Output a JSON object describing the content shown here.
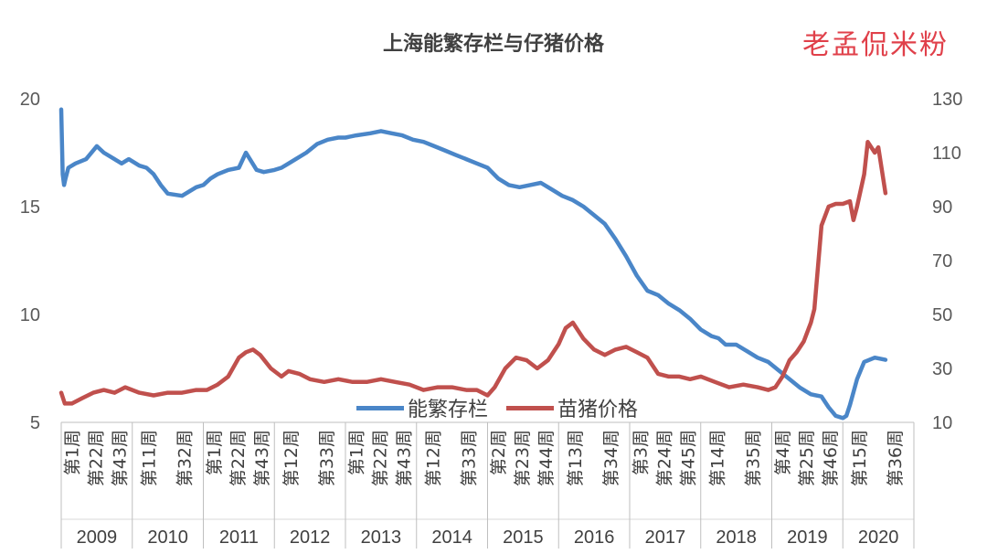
{
  "chart_data": {
    "type": "line",
    "title": "上海能繁存栏与仔猪价格",
    "watermark": "老孟侃米粉",
    "left_axis": {
      "ylim": [
        5,
        20
      ],
      "ticks": [
        "5",
        "10",
        "15",
        "20"
      ]
    },
    "right_axis": {
      "ylim": [
        10,
        130
      ],
      "ticks": [
        "10",
        "30",
        "50",
        "70",
        "90",
        "110",
        "130"
      ]
    },
    "years": [
      "2009",
      "2010",
      "2011",
      "2012",
      "2013",
      "2014",
      "2015",
      "2016",
      "2017",
      "2018",
      "2019",
      "2020"
    ],
    "week_labels": [
      [
        "第1周",
        "第22周",
        "第43周"
      ],
      [
        "第11周",
        "第32周"
      ],
      [
        "第1周",
        "第22周",
        "第43周"
      ],
      [
        "第12周",
        "第33周"
      ],
      [
        "第1周",
        "第22周",
        "第43周"
      ],
      [
        "第12周",
        "第33周"
      ],
      [
        "第2周",
        "第23周",
        "第44周"
      ],
      [
        "第13周",
        "第34周"
      ],
      [
        "第3周",
        "第24周",
        "第45周"
      ],
      [
        "第14周",
        "第35周"
      ],
      [
        "第4周",
        "第25周",
        "第46周"
      ],
      [
        "第15周",
        "第36周"
      ]
    ],
    "grid": false,
    "legend_position": "bottom-center",
    "series": [
      {
        "name": "能繁存栏",
        "axis": "left",
        "color": "#4a86c8",
        "x": [
          2009.0,
          2009.02,
          2009.04,
          2009.06,
          2009.1,
          2009.2,
          2009.35,
          2009.5,
          2009.6,
          2009.75,
          2009.85,
          2009.95,
          2010.1,
          2010.2,
          2010.3,
          2010.4,
          2010.5,
          2010.7,
          2010.9,
          2011.0,
          2011.1,
          2011.2,
          2011.35,
          2011.5,
          2011.6,
          2011.75,
          2011.85,
          2012.0,
          2012.1,
          2012.2,
          2012.3,
          2012.45,
          2012.6,
          2012.75,
          2012.9,
          2013.0,
          2013.15,
          2013.35,
          2013.5,
          2013.65,
          2013.8,
          2013.95,
          2014.1,
          2014.25,
          2014.4,
          2014.55,
          2014.7,
          2014.85,
          2015.0,
          2015.15,
          2015.3,
          2015.45,
          2015.6,
          2015.75,
          2015.9,
          2016.05,
          2016.2,
          2016.35,
          2016.5,
          2016.65,
          2016.8,
          2016.95,
          2017.1,
          2017.25,
          2017.4,
          2017.55,
          2017.7,
          2017.85,
          2018.0,
          2018.15,
          2018.25,
          2018.35,
          2018.5,
          2018.65,
          2018.8,
          2018.95,
          2019.1,
          2019.25,
          2019.4,
          2019.55,
          2019.7,
          2019.8,
          2019.9,
          2020.0,
          2020.05,
          2020.1,
          2020.2,
          2020.3,
          2020.45,
          2020.6
        ],
        "values": [
          19.5,
          16.5,
          16.0,
          16.3,
          16.8,
          17.0,
          17.2,
          17.8,
          17.5,
          17.2,
          17.0,
          17.2,
          16.9,
          16.8,
          16.5,
          16.0,
          15.6,
          15.5,
          15.9,
          16.0,
          16.3,
          16.5,
          16.7,
          16.8,
          17.5,
          16.7,
          16.6,
          16.7,
          16.8,
          17.0,
          17.2,
          17.5,
          17.9,
          18.1,
          18.2,
          18.2,
          18.3,
          18.4,
          18.5,
          18.4,
          18.3,
          18.1,
          18.0,
          17.8,
          17.6,
          17.4,
          17.2,
          17.0,
          16.8,
          16.3,
          16.0,
          15.9,
          16.0,
          16.1,
          15.8,
          15.5,
          15.3,
          15.0,
          14.6,
          14.2,
          13.5,
          12.7,
          11.8,
          11.1,
          10.9,
          10.5,
          10.2,
          9.8,
          9.3,
          9.0,
          8.9,
          8.6,
          8.6,
          8.3,
          8.0,
          7.8,
          7.4,
          7.0,
          6.6,
          6.3,
          6.2,
          5.7,
          5.3,
          5.2,
          5.3,
          5.8,
          7.0,
          7.8,
          8.0,
          7.9
        ]
      },
      {
        "name": "苗猪价格",
        "axis": "right",
        "color": "#c0504d",
        "x": [
          2009.0,
          2009.05,
          2009.15,
          2009.3,
          2009.45,
          2009.6,
          2009.75,
          2009.9,
          2010.1,
          2010.3,
          2010.5,
          2010.7,
          2010.9,
          2011.05,
          2011.2,
          2011.35,
          2011.5,
          2011.6,
          2011.7,
          2011.8,
          2011.95,
          2012.1,
          2012.2,
          2012.35,
          2012.5,
          2012.7,
          2012.9,
          2013.1,
          2013.3,
          2013.5,
          2013.7,
          2013.9,
          2014.1,
          2014.3,
          2014.5,
          2014.7,
          2014.85,
          2015.0,
          2015.1,
          2015.25,
          2015.4,
          2015.55,
          2015.7,
          2015.85,
          2016.0,
          2016.1,
          2016.2,
          2016.35,
          2016.5,
          2016.65,
          2016.8,
          2016.95,
          2017.1,
          2017.25,
          2017.4,
          2017.55,
          2017.7,
          2017.85,
          2018.0,
          2018.2,
          2018.4,
          2018.6,
          2018.8,
          2018.95,
          2019.05,
          2019.15,
          2019.25,
          2019.35,
          2019.45,
          2019.55,
          2019.6,
          2019.7,
          2019.8,
          2019.9,
          2020.0,
          2020.1,
          2020.15,
          2020.2,
          2020.3,
          2020.35,
          2020.45,
          2020.5,
          2020.6
        ],
        "values": [
          21,
          17,
          17,
          19,
          21,
          22,
          21,
          23,
          21,
          20,
          21,
          21,
          22,
          22,
          24,
          27,
          34,
          36,
          37,
          35,
          30,
          27,
          29,
          28,
          26,
          25,
          26,
          25,
          25,
          26,
          25,
          24,
          22,
          23,
          23,
          22,
          22,
          20,
          23,
          30,
          34,
          33,
          30,
          33,
          39,
          45,
          47,
          41,
          37,
          35,
          37,
          38,
          36,
          34,
          28,
          27,
          27,
          26,
          27,
          25,
          23,
          24,
          23,
          22,
          23,
          27,
          33,
          36,
          40,
          47,
          52,
          83,
          90,
          91,
          91,
          92,
          85,
          90,
          102,
          114,
          110,
          112,
          95
        ]
      }
    ]
  }
}
